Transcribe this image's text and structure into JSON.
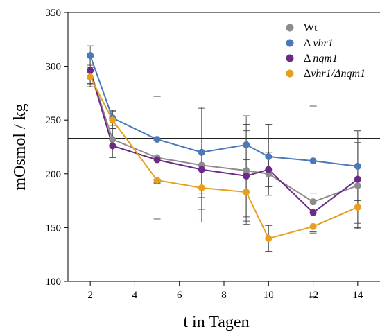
{
  "chart_data": {
    "type": "line",
    "xlabel": "t in Tagen",
    "ylabel": "mOsmol / kg",
    "xlim": [
      1,
      15
    ],
    "ylim": [
      100,
      350
    ],
    "x_ticks": [
      2,
      4,
      6,
      8,
      10,
      12,
      14
    ],
    "y_ticks": [
      100,
      150,
      200,
      250,
      300,
      350
    ],
    "x_tick_labels": [
      "2",
      "4",
      "6",
      "8",
      "10",
      "12",
      "14"
    ],
    "y_tick_labels": [
      "100",
      "150",
      "200",
      "250",
      "300",
      "350"
    ],
    "reference_line": 233,
    "legend_position": "top-right",
    "x": [
      2,
      3,
      5,
      7,
      9,
      10,
      12,
      14
    ],
    "series": [
      {
        "name": "Wt",
        "legend_prefix": "",
        "legend_italic": "",
        "color": "#8c8c8c",
        "values": [
          296,
          232,
          215,
          208,
          203,
          200,
          174,
          189
        ],
        "error": [
          13,
          10,
          57,
          53,
          43,
          20,
          88,
          40
        ]
      },
      {
        "name": "Δ vhr1",
        "legend_prefix": "Δ ",
        "legend_italic": "vhr1",
        "color": "#4a78b8",
        "values": [
          310,
          252,
          232,
          220,
          227,
          216,
          212,
          207
        ],
        "error": [
          9,
          7,
          40,
          42,
          27,
          30,
          51,
          32
        ]
      },
      {
        "name": "Δ nqm1",
        "legend_prefix": "Δ ",
        "legend_italic": "nqm1",
        "color": "#6b2a85",
        "values": [
          296,
          226,
          213,
          204,
          198,
          204,
          164,
          195
        ],
        "error": [
          12,
          11,
          18,
          22,
          42,
          16,
          18,
          45
        ]
      },
      {
        "name": "Δvhr1/Δnqm1",
        "legend_prefix": "Δ",
        "legend_italic": "vhr1/Δnqm1",
        "color": "#e6a01e",
        "values": [
          290,
          250,
          194,
          187,
          183,
          140,
          151,
          169
        ],
        "error": [
          9,
          8,
          3,
          20,
          30,
          12,
          6,
          15
        ]
      }
    ]
  }
}
